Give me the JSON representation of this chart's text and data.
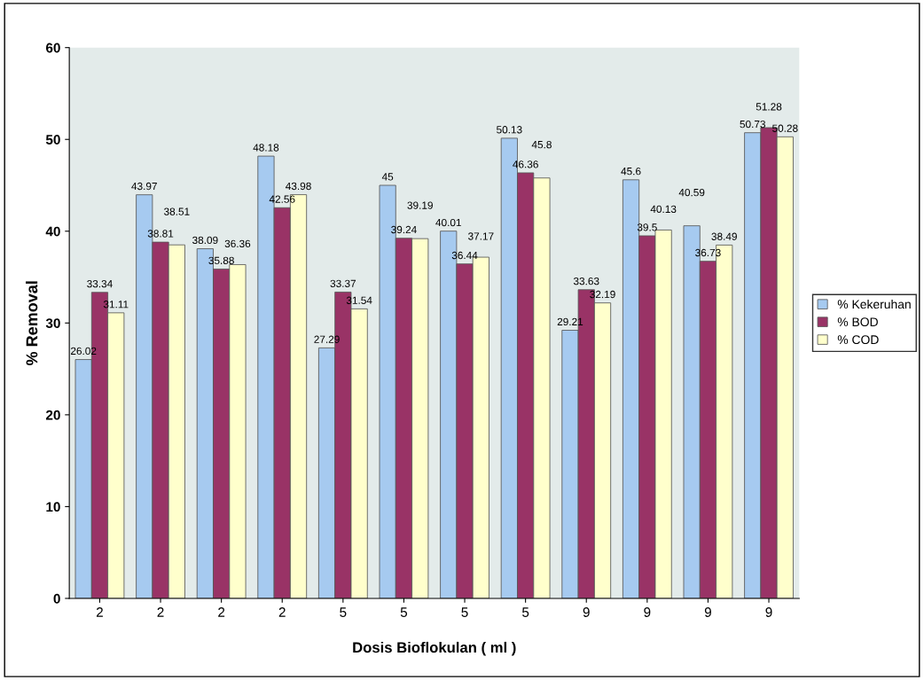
{
  "chart_data": {
    "type": "bar",
    "xlabel": "Dosis Bioflokulan ( ml )",
    "ylabel": "% Removal",
    "categories": [
      "2",
      "2",
      "2",
      "2",
      "5",
      "5",
      "5",
      "5",
      "9",
      "9",
      "9",
      "9"
    ],
    "series": [
      {
        "name": "% Kekeruhan",
        "color": "#a6caf0",
        "values": [
          26.02,
          43.97,
          38.09,
          48.18,
          27.29,
          45,
          40.01,
          50.13,
          29.21,
          45.6,
          40.59,
          50.73
        ]
      },
      {
        "name": "% BOD",
        "color": "#993366",
        "values": [
          33.34,
          38.81,
          35.88,
          42.56,
          33.37,
          39.24,
          36.44,
          46.36,
          33.63,
          39.5,
          36.73,
          51.28
        ]
      },
      {
        "name": "% COD",
        "color": "#ffffcc",
        "values": [
          31.11,
          38.51,
          36.36,
          43.98,
          31.54,
          39.19,
          37.17,
          45.8,
          32.19,
          40.13,
          38.49,
          50.28
        ]
      }
    ],
    "ylim": [
      0,
      60
    ],
    "yticks": [
      0,
      10,
      20,
      30,
      40,
      50,
      60
    ],
    "grid": false,
    "legend": "right",
    "data_labels": true
  }
}
